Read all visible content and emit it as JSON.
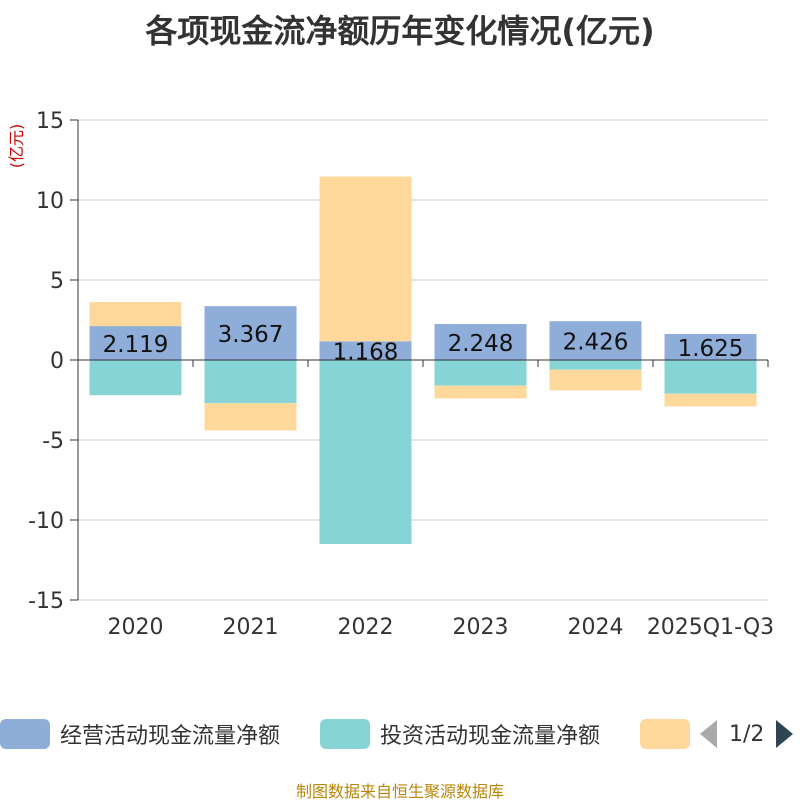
{
  "title": "各项现金流净额历年变化情况(亿元)",
  "legend": {
    "items": [
      {
        "label": "经营活动现金流量净额",
        "color": "#8fadd9"
      },
      {
        "label": "投资活动现金流量净额",
        "color": "#86d4d6"
      },
      {
        "label": "",
        "color": "#fdd89a"
      }
    ],
    "page": "1/2"
  },
  "footer": "制图数据来自恒生聚源数据库",
  "chart_data": {
    "type": "bar",
    "stacked": true,
    "ylabel": "(亿元)",
    "ylim": [
      -15,
      15
    ],
    "yticks": [
      15,
      10,
      5,
      0,
      -5,
      -10,
      -15
    ],
    "categories": [
      "2020",
      "2021",
      "2022",
      "2023",
      "2024",
      "2025Q1-Q3"
    ],
    "series": [
      {
        "name": "经营活动现金流量净额",
        "color": "#8fadd9",
        "values": [
          2.119,
          3.367,
          1.168,
          2.248,
          2.426,
          1.625
        ],
        "labels": [
          "2.119",
          "3.367",
          "1.168",
          "2.248",
          "2.426",
          "1.625"
        ]
      },
      {
        "name": "投资活动现金流量净额",
        "color": "#86d4d6",
        "values": [
          -2.2,
          -2.7,
          -11.5,
          -1.6,
          -0.6,
          -2.1
        ]
      },
      {
        "name": "",
        "color": "#fdd89a",
        "values": [
          1.5,
          -1.7,
          10.3,
          -0.8,
          -1.3,
          -0.8
        ]
      }
    ]
  }
}
